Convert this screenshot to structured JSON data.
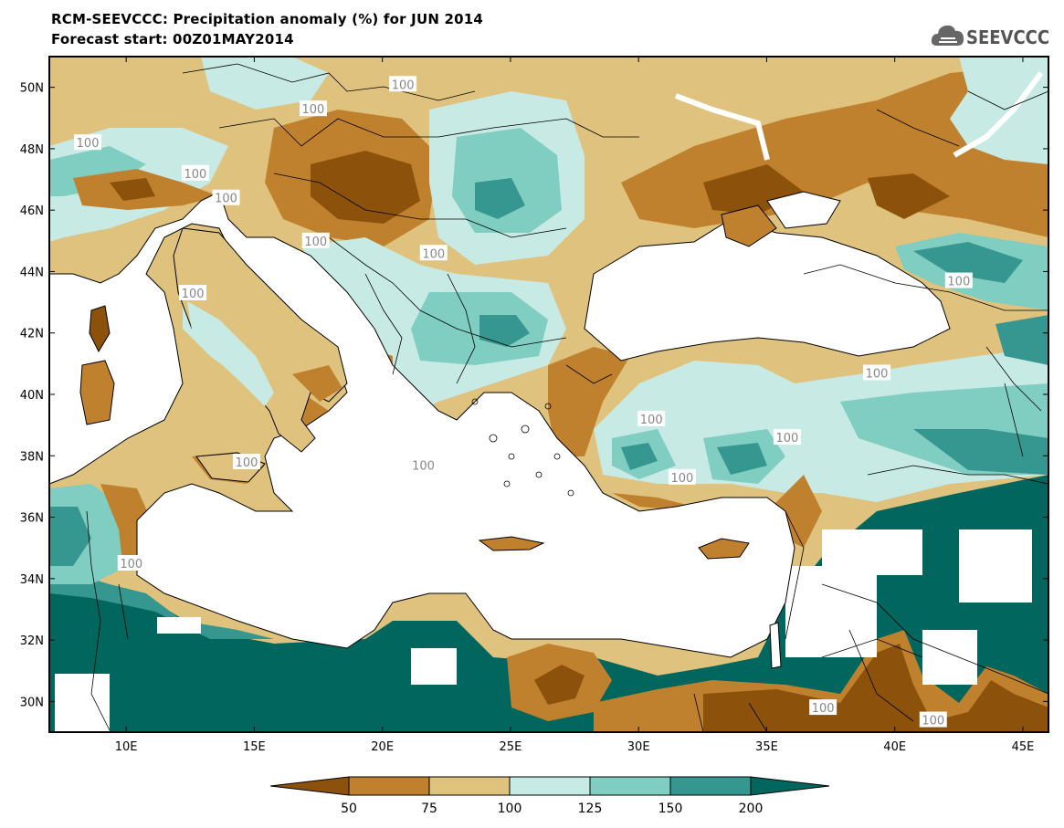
{
  "header": {
    "title": "RCM-SEEVCCC: Precipitation anomaly (%) for JUN 2014",
    "subtitle": "Forecast start: 00Z01MAY2014"
  },
  "logo": {
    "text": "SEEVCCC",
    "icon": "cloud-icon"
  },
  "map": {
    "lon_ticks": [
      "10E",
      "15E",
      "20E",
      "25E",
      "30E",
      "35E",
      "40E",
      "45E"
    ],
    "lon_values": [
      10,
      15,
      20,
      25,
      30,
      35,
      40,
      45
    ],
    "lat_ticks": [
      "50N",
      "48N",
      "46N",
      "44N",
      "42N",
      "40N",
      "38N",
      "36N",
      "34N",
      "32N",
      "30N"
    ],
    "lat_values": [
      50,
      48,
      46,
      44,
      42,
      40,
      38,
      36,
      34,
      32,
      30
    ],
    "lon_range": [
      7,
      46
    ],
    "lat_range": [
      29,
      51
    ],
    "contour_labels": [
      {
        "text": "100",
        "lon": 20.8,
        "lat": 50.1
      },
      {
        "text": "100",
        "lon": 17.3,
        "lat": 49.3
      },
      {
        "text": "100",
        "lon": 8.5,
        "lat": 48.2
      },
      {
        "text": "100",
        "lon": 12.7,
        "lat": 47.2
      },
      {
        "text": "100",
        "lon": 13.9,
        "lat": 46.4
      },
      {
        "text": "100",
        "lon": 17.4,
        "lat": 45.0
      },
      {
        "text": "100",
        "lon": 22.0,
        "lat": 44.6
      },
      {
        "text": "100",
        "lon": 12.6,
        "lat": 43.3
      },
      {
        "text": "100",
        "lon": 42.5,
        "lat": 43.7
      },
      {
        "text": "100",
        "lon": 39.3,
        "lat": 40.7
      },
      {
        "text": "100",
        "lon": 30.5,
        "lat": 39.2
      },
      {
        "text": "100",
        "lon": 35.8,
        "lat": 38.6
      },
      {
        "text": "100",
        "lon": 31.7,
        "lat": 37.3
      },
      {
        "text": "100",
        "lon": 14.7,
        "lat": 37.8
      },
      {
        "text": "100",
        "lon": 21.6,
        "lat": 37.7
      },
      {
        "text": "100",
        "lon": 10.2,
        "lat": 34.5
      },
      {
        "text": "100",
        "lon": 37.2,
        "lat": 29.8
      },
      {
        "text": "100",
        "lon": 41.5,
        "lat": 29.4
      }
    ]
  },
  "colorbar": {
    "labels": [
      "50",
      "75",
      "100",
      "125",
      "150",
      "200"
    ],
    "colors": [
      "#8c510a",
      "#bf812d",
      "#dfc27d",
      "#c7eae5",
      "#80cdc1",
      "#35978f",
      "#01665e"
    ]
  },
  "colors": {
    "land_default": "#dfc27d",
    "sea": "#ffffff",
    "border": "#000000",
    "contour_100": "#aab4c0"
  }
}
